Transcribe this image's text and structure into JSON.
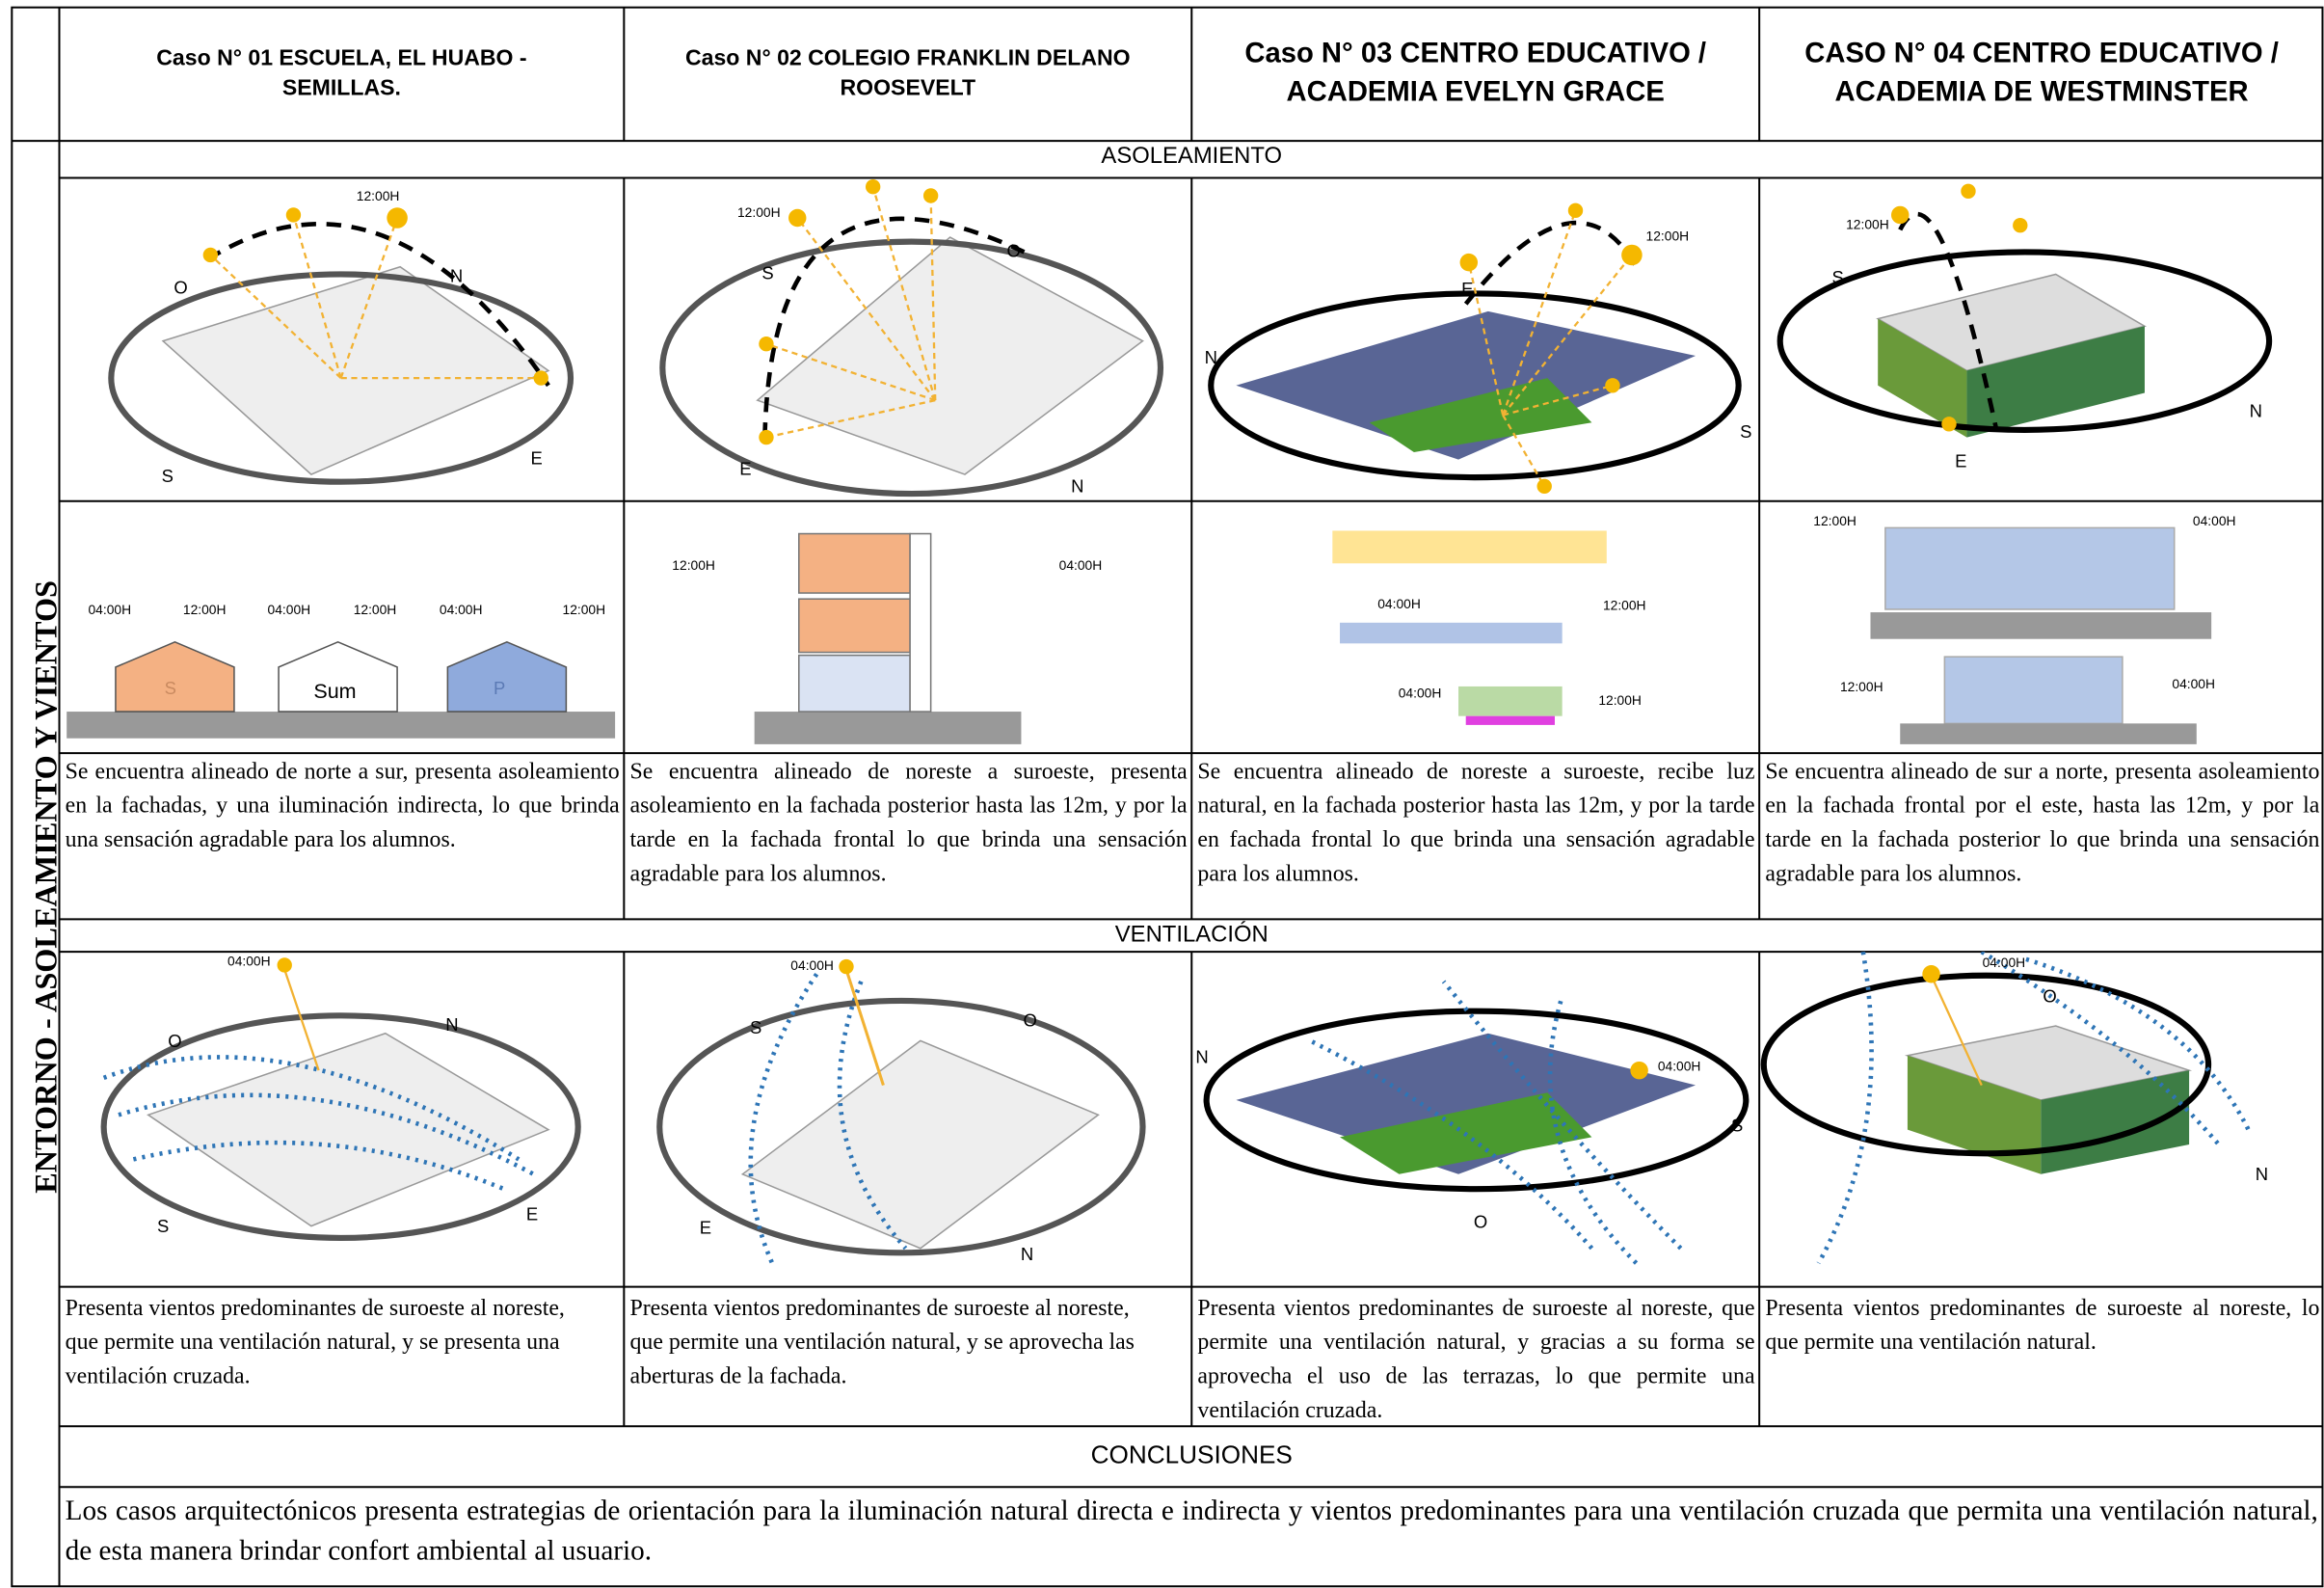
{
  "side_label": "ENTORNO - ASOLEAMIENTO Y VIENTOS",
  "cases": [
    "Caso N° 01 ESCUELA, EL HUABO - SEMILLAS.",
    "Caso N° 02 COLEGIO FRANKLIN DELANO ROOSEVELT",
    "Caso N° 03   CENTRO EDUCATIVO / ACADEMIA EVELYN GRACE",
    "CASO N° 04  CENTRO EDUCATIVO / ACADEMIA DE WESTMINSTER"
  ],
  "asoleamiento": {
    "title": "ASOLEAMIENTO",
    "plans": [
      [
        "12:00H",
        "O",
        "N",
        "S",
        "E"
      ],
      [
        "12:00H",
        "S",
        "O",
        "E",
        "N"
      ],
      [
        "12:00H",
        "E",
        "N",
        "S"
      ],
      [
        "12:00H",
        "S",
        "E",
        "N"
      ]
    ],
    "sections": [
      [
        "04:00H",
        "12:00H",
        "04:00H",
        "12:00H",
        "04:00H",
        "12:00H",
        "S",
        "Sum",
        "P"
      ],
      [
        "12:00H",
        "04:00H"
      ],
      [
        "04:00H",
        "12:00H",
        "04:00H",
        "12:00H"
      ],
      [
        "12:00H",
        "04:00H",
        "12:00H",
        "04:00H"
      ]
    ],
    "texts": [
      "Se encuentra alineado de norte a sur, presenta asoleamiento en la fachadas, y una iluminación indirecta, lo que brinda una sensación agradable para los alumnos.",
      "Se encuentra alineado de noreste a suroeste, presenta asoleamiento en la fachada posterior hasta las 12m, y por la tarde en la fachada frontal lo que brinda una sensación agradable para los alumnos.",
      "Se encuentra alineado de noreste a suroeste, recibe luz natural, en la fachada posterior hasta las 12m, y por la tarde en fachada frontal lo que brinda una sensación agradable para los alumnos.",
      "Se encuentra alineado de sur a norte, presenta asoleamiento en la fachada frontal por el este, hasta las 12m, y por la tarde en la fachada posterior lo que brinda una sensación agradable para los alumnos."
    ]
  },
  "ventilacion": {
    "title": "VENTILACIÓN",
    "plans": [
      [
        "04:00H",
        "O",
        "N",
        "S",
        "E"
      ],
      [
        "04:00H",
        "S",
        "O",
        "E",
        "N"
      ],
      [
        "N",
        "04:00H",
        "S",
        "O"
      ],
      [
        "04:00H",
        "O",
        "N"
      ]
    ],
    "texts": [
      "Presenta vientos predominantes de suroeste al noreste, que permite una ventilación natural, y se presenta una ventilación cruzada.",
      "Presenta vientos predominantes de suroeste al noreste, que permite una ventilación natural, y se aprovecha las aberturas de la fachada.",
      "Presenta vientos predominantes de suroeste al noreste, que permite una ventilación natural, y gracias a su forma se aprovecha el uso de las terrazas, lo que permite una ventilación cruzada.",
      "Presenta vientos predominantes de suroeste al noreste, lo que permite una ventilación natural."
    ]
  },
  "conclusiones": {
    "title": "CONCLUSIONES",
    "text": "Los casos arquitectónicos presenta estrategias de orientación para la iluminación natural directa e indirecta y vientos predominantes para una ventilación cruzada que permita una ventilación natural, de esta manera brindar confort ambiental al usuario."
  }
}
